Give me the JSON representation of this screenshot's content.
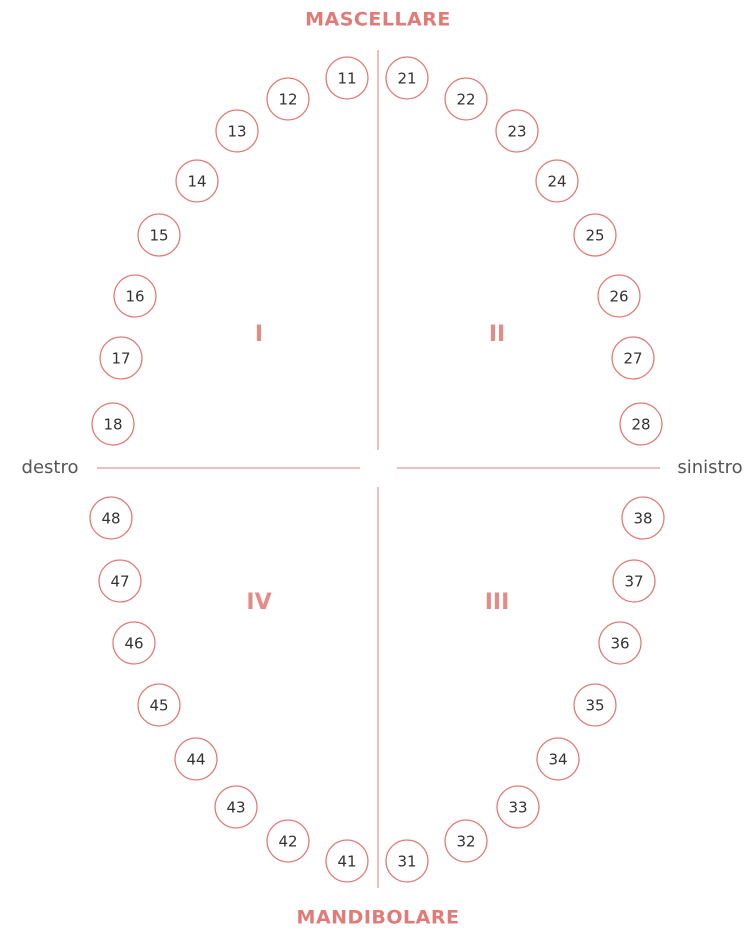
{
  "header": {
    "top": "MASCELLARE",
    "bottom": "MANDIBOLARE"
  },
  "sides": {
    "left": "destro",
    "right": "sinistro"
  },
  "quadrants": [
    "I",
    "II",
    "III",
    "IV"
  ],
  "teeth": [
    "11",
    "12",
    "13",
    "14",
    "15",
    "16",
    "17",
    "18",
    "21",
    "22",
    "23",
    "24",
    "25",
    "26",
    "27",
    "28",
    "31",
    "32",
    "33",
    "34",
    "35",
    "36",
    "37",
    "38",
    "41",
    "42",
    "43",
    "44",
    "45",
    "46",
    "47",
    "48"
  ]
}
